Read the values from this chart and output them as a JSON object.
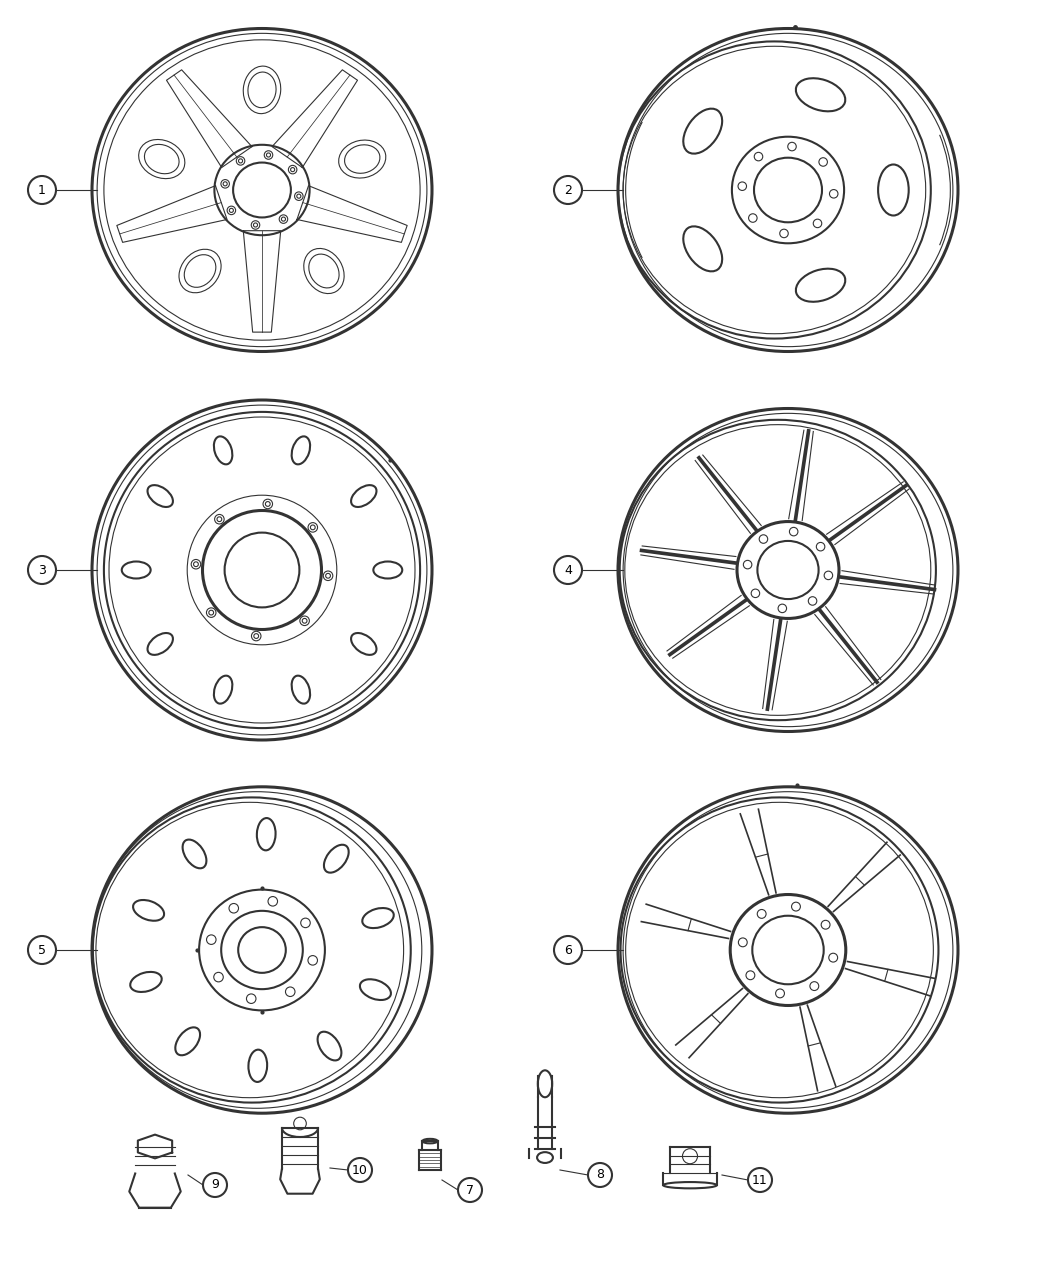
{
  "background_color": "#ffffff",
  "line_color": "#333333",
  "fig_width": 10.5,
  "fig_height": 12.75,
  "wheels": [
    {
      "num": 1,
      "col": 0,
      "row": 0
    },
    {
      "num": 2,
      "col": 1,
      "row": 0
    },
    {
      "num": 3,
      "col": 0,
      "row": 1
    },
    {
      "num": 4,
      "col": 1,
      "row": 1
    },
    {
      "num": 5,
      "col": 0,
      "row": 2
    },
    {
      "num": 6,
      "col": 1,
      "row": 2
    }
  ]
}
